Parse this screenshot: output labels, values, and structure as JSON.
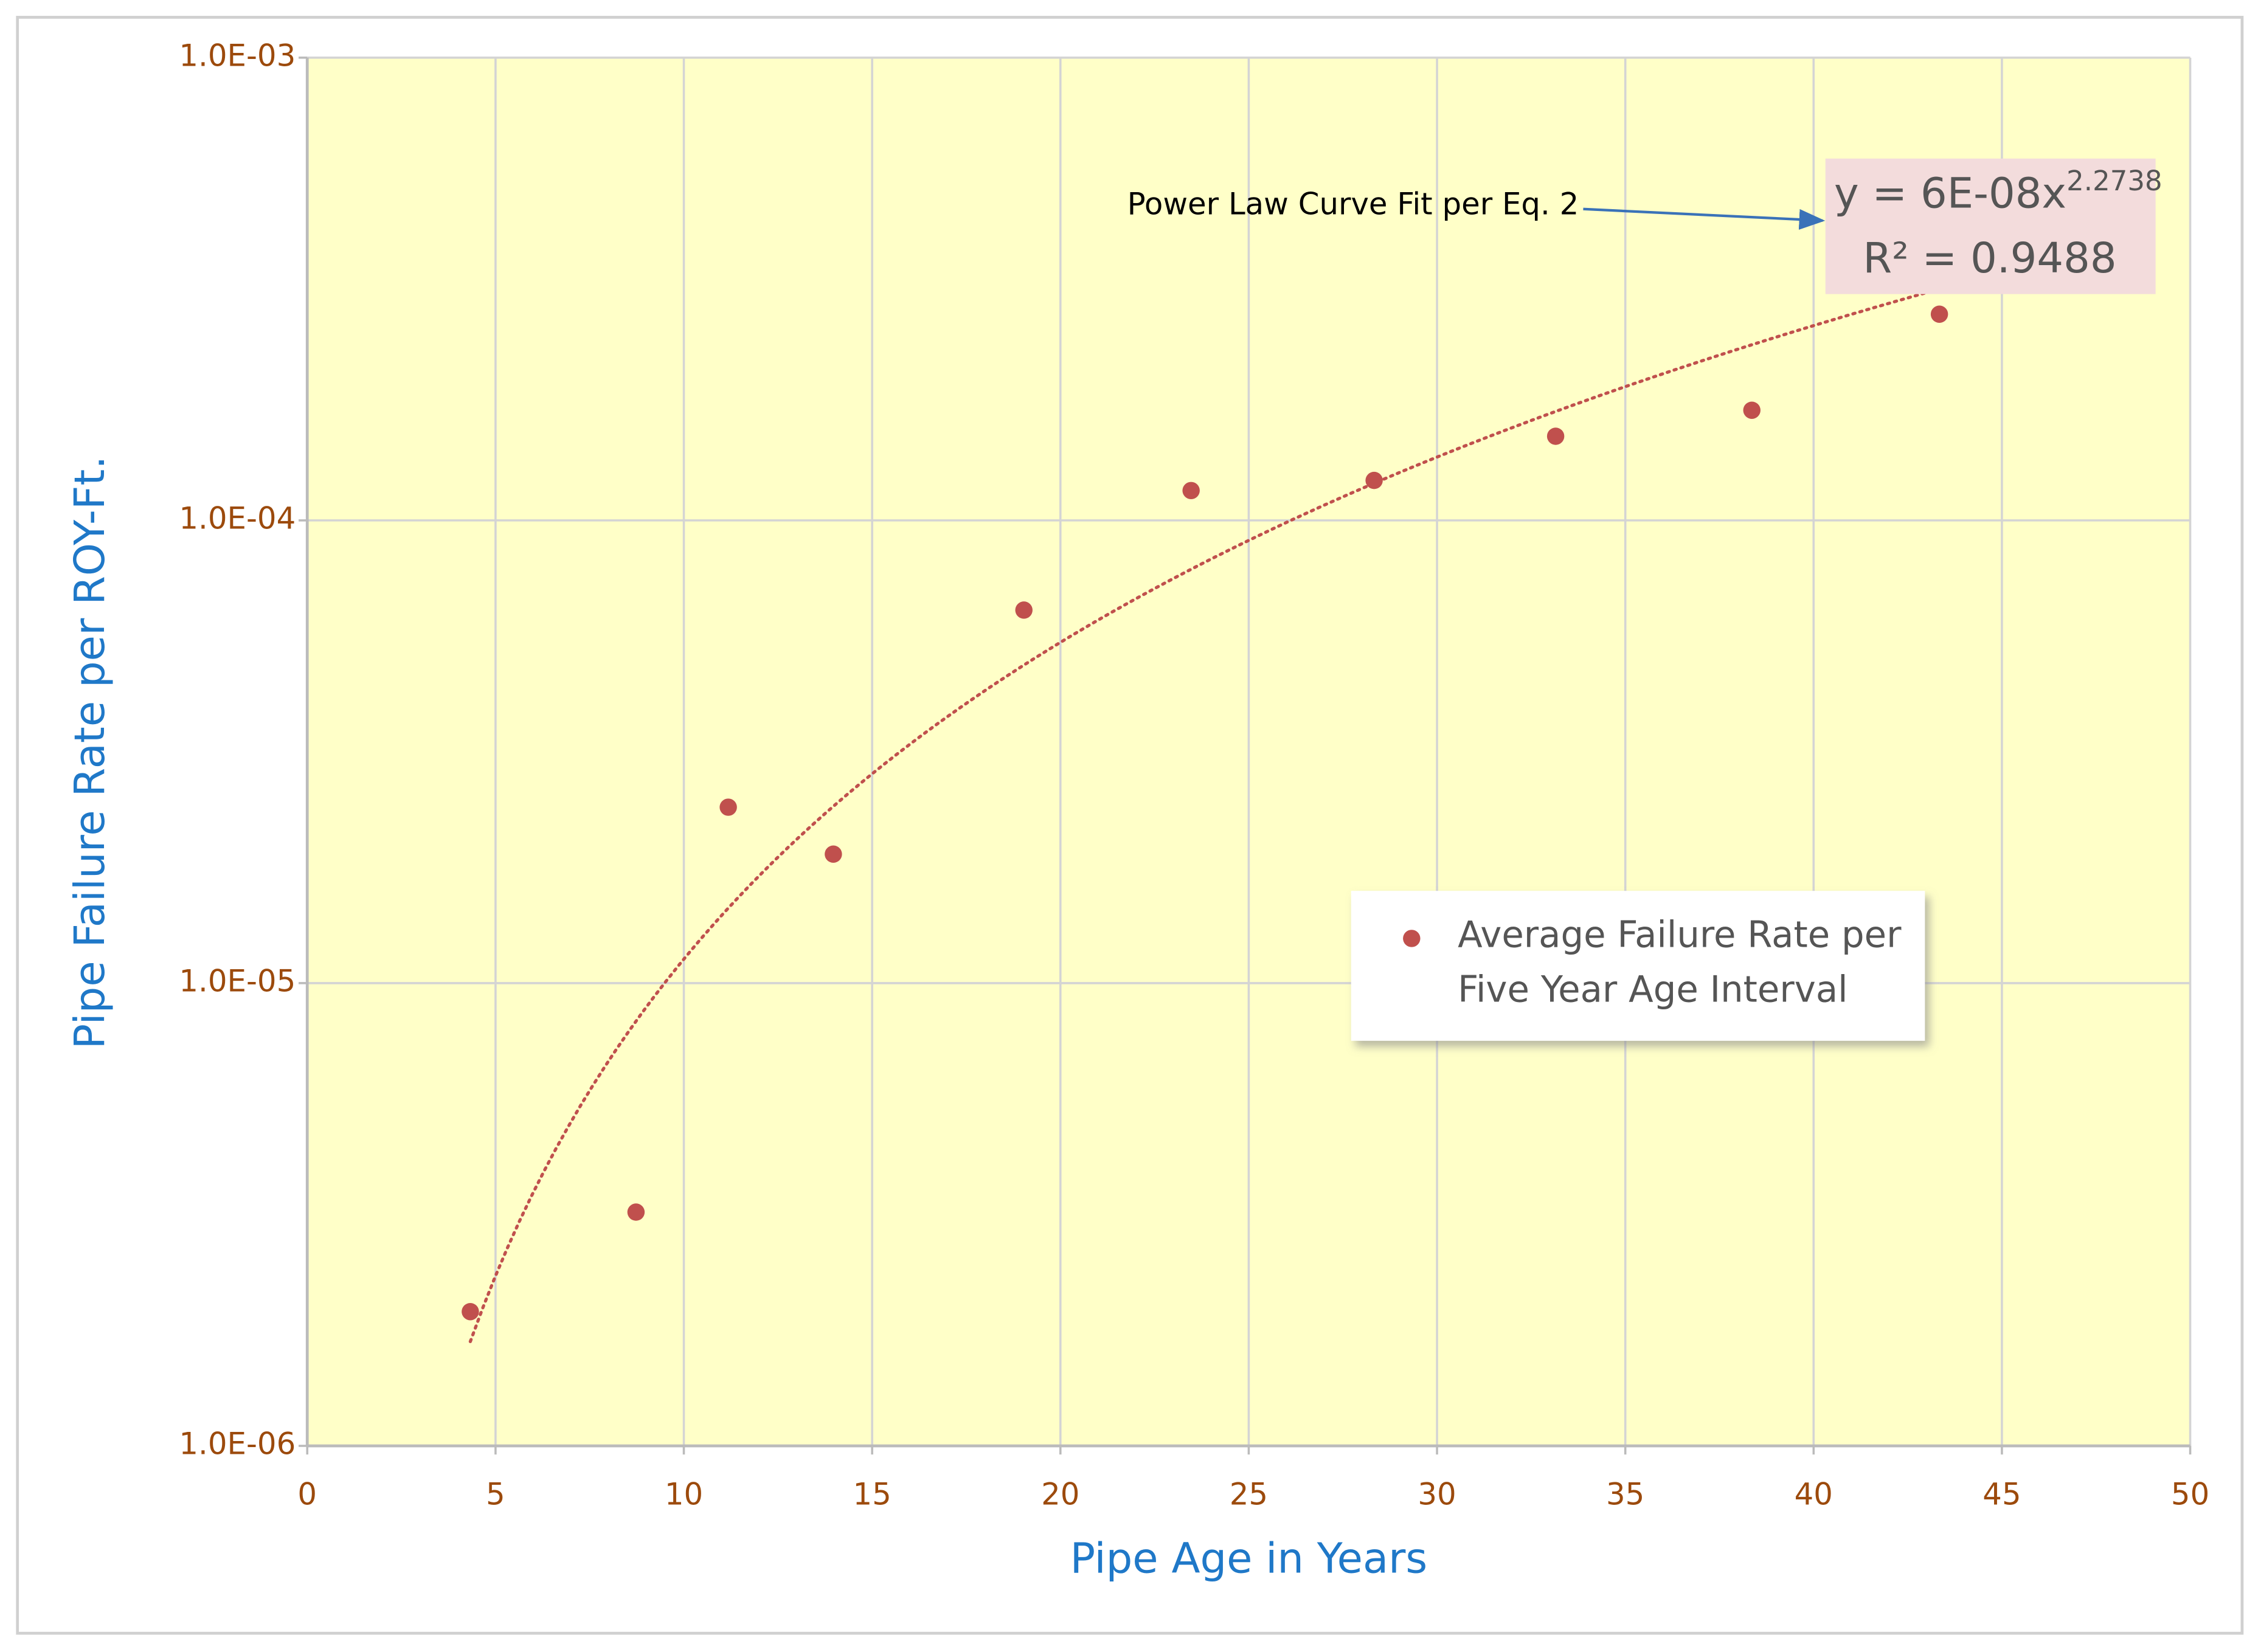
{
  "chart_data": {
    "type": "scatter",
    "x_label": "Pipe Age in Years",
    "y_label": "Pipe Failure Rate per ROY-Ft.",
    "x": [
      4.33,
      8.73,
      11.18,
      13.97,
      19.03,
      23.47,
      28.33,
      33.15,
      38.36,
      43.34
    ],
    "series": [
      {
        "name": "Average Failure Rate per Five Year Age Interval",
        "color": "#c0504d",
        "values": [
          1.95e-06,
          3.2e-06,
          2.4e-05,
          1.9e-05,
          6.4e-05,
          0.000116,
          0.000122,
          0.000152,
          0.000173,
          0.000279
        ]
      }
    ],
    "xlim": [
      0,
      50
    ],
    "xticks": [
      0,
      5,
      10,
      15,
      20,
      25,
      30,
      35,
      40,
      45,
      50
    ],
    "ylim": [
      1e-06,
      0.001
    ],
    "y_scale": "log",
    "yticks": [
      {
        "value": 1e-06,
        "label": "1.0E-06"
      },
      {
        "value": 1e-05,
        "label": "1.0E-05"
      },
      {
        "value": 0.0001,
        "label": "1.0E-04"
      },
      {
        "value": 0.001,
        "label": "1.0E-03"
      }
    ],
    "grid": true,
    "legend_loc": "center right",
    "trendline": {
      "type": "power",
      "coefficient": 6e-08,
      "exponent": 2.2738,
      "color": "#c0504d",
      "equation": "y = 6E-08x",
      "r_squared_label": "R² = 0.9488"
    },
    "annotation": "Power Law Curve Fit per Eq. 2"
  }
}
